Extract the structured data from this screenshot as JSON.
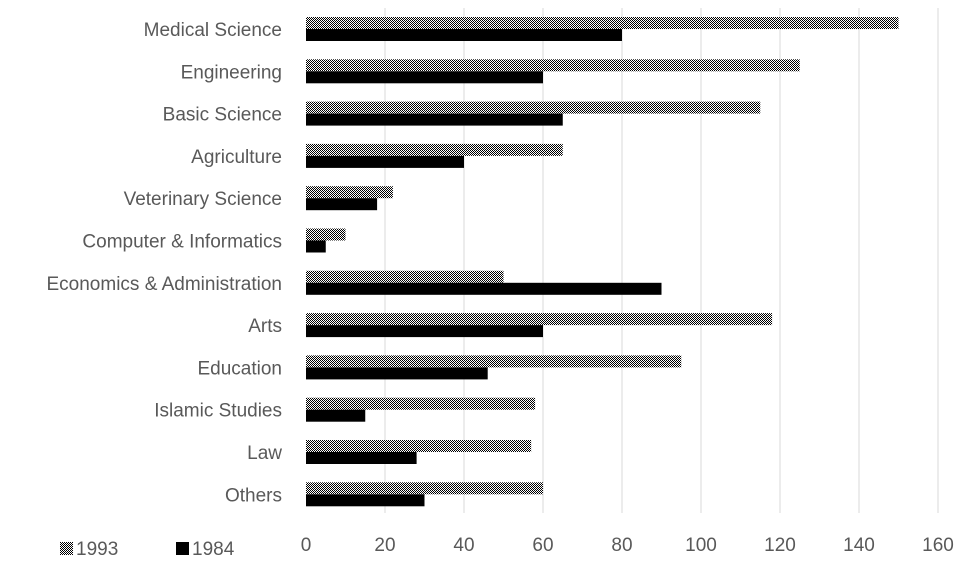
{
  "chart_data": {
    "type": "bar",
    "orientation": "horizontal",
    "categories": [
      "Medical Science",
      "Engineering",
      "Basic Science",
      "Agriculture",
      "Veterinary Science",
      "Computer & Informatics",
      "Economics & Administration",
      "Arts",
      "Education",
      "Islamic Studies",
      "Law",
      "Others"
    ],
    "series": [
      {
        "name": "1993",
        "pattern": "checker",
        "color": "#000000",
        "values": [
          150,
          125,
          115,
          65,
          22,
          10,
          50,
          118,
          95,
          58,
          57,
          60
        ]
      },
      {
        "name": "1984",
        "pattern": "solid",
        "color": "#000000",
        "values": [
          80,
          60,
          65,
          40,
          18,
          5,
          90,
          60,
          46,
          15,
          28,
          30
        ]
      }
    ],
    "xlim": [
      0,
      160
    ],
    "xticks": [
      0,
      20,
      40,
      60,
      80,
      100,
      120,
      140,
      160
    ],
    "grid": true,
    "legend_position": "bottom-left",
    "title": "",
    "xlabel": "",
    "ylabel": ""
  },
  "colors": {
    "gridline": "#d9d9d9",
    "text": "#595959",
    "bar": "#000000"
  }
}
